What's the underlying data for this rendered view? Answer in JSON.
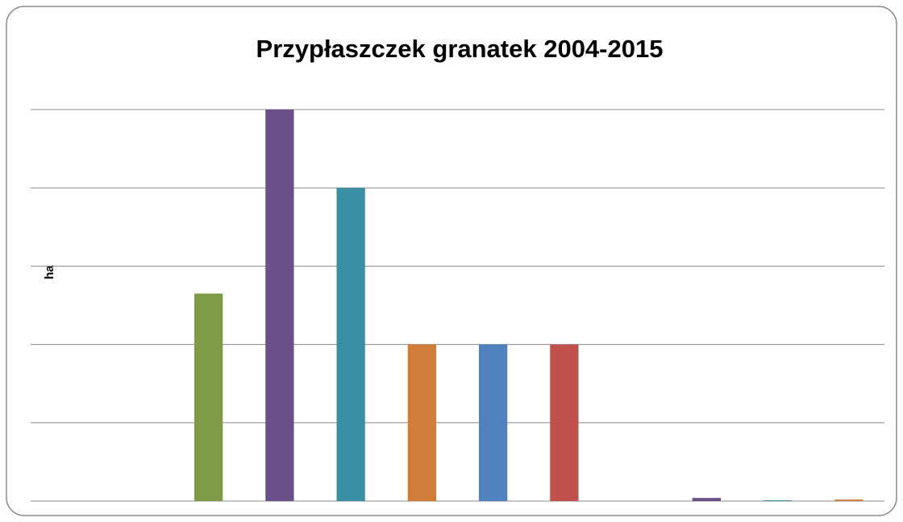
{
  "chart_data": {
    "type": "bar",
    "title": "Przypłaszczek granatek 2004-2015",
    "y_label": "ha",
    "categories": [
      null,
      null,
      null,
      null,
      null,
      null,
      null,
      null,
      null,
      null,
      null,
      null
    ],
    "values": [
      0,
      0,
      2.65,
      5,
      4,
      2,
      2,
      2,
      0,
      0.04,
      0.01,
      0.02
    ],
    "colors": [
      "#4f81bd",
      "#c0504d",
      "#7f9b48",
      "#6a5088",
      "#3b8fa5",
      "#d07d3a",
      "#4f81bd",
      "#c0504d",
      "#7f9b48",
      "#6a5088",
      "#3b8fa5",
      "#d07d3a"
    ],
    "ylim": [
      0,
      5
    ],
    "yticks": [
      0,
      1,
      2,
      3,
      4,
      5
    ],
    "grid": true
  }
}
